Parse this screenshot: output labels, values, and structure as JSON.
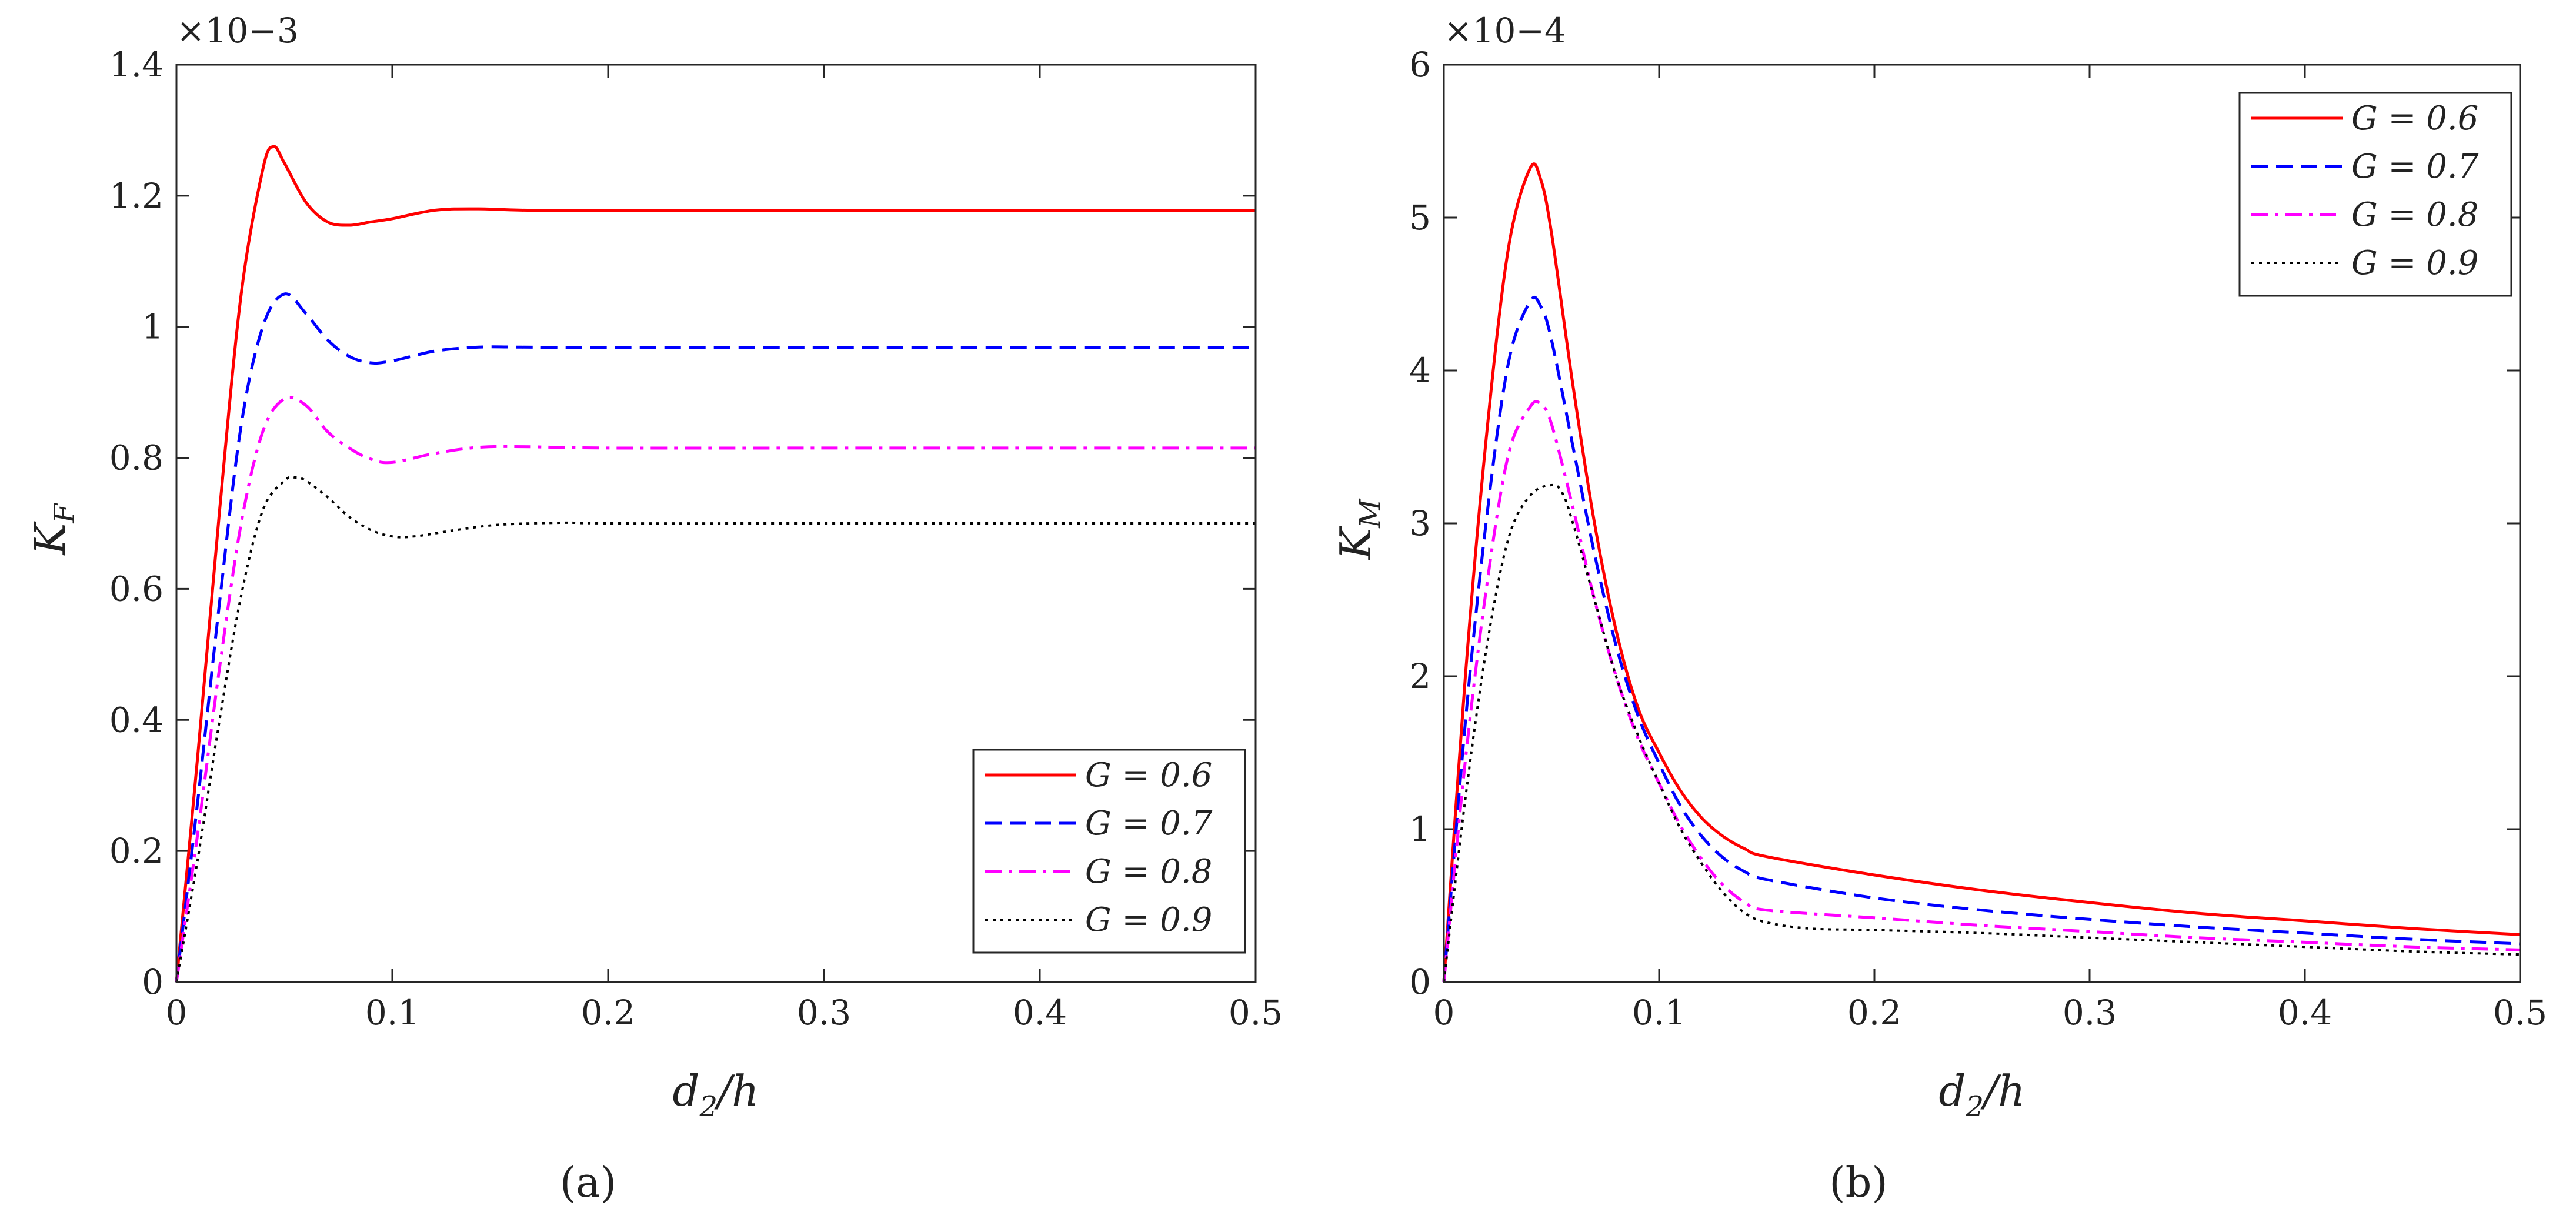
{
  "figure": {
    "captions": [
      "(a)",
      "(b)"
    ]
  },
  "legend_labels": [
    "G = 0.6",
    "G = 0.7",
    "G = 0.8",
    "G = 0.9"
  ],
  "chart_data": [
    {
      "type": "line",
      "panel": "a",
      "caption": "(a)",
      "xlabel": "d2/h",
      "ylabel": "KF",
      "y_exponent": "×10−3",
      "xlim": [
        0,
        0.5
      ],
      "ylim": [
        0,
        1.4
      ],
      "xticks": [
        0,
        0.1,
        0.2,
        0.3,
        0.4,
        0.5
      ],
      "xtick_labels": [
        "0",
        "0.1",
        "0.2",
        "0.3",
        "0.4",
        "0.5"
      ],
      "yticks": [
        0,
        0.2,
        0.4,
        0.6,
        0.8,
        1.0,
        1.2,
        1.4
      ],
      "ytick_labels": [
        "0",
        "0.2",
        "0.4",
        "0.6",
        "0.8",
        "1",
        "1.2",
        "1.4"
      ],
      "legend_position": "lower-right",
      "series": [
        {
          "name": "G = 0.6",
          "color": "#ff0000",
          "dash": "solid",
          "x": [
            0,
            0.01,
            0.02,
            0.03,
            0.04,
            0.045,
            0.05,
            0.06,
            0.07,
            0.08,
            0.09,
            0.1,
            0.12,
            0.14,
            0.16,
            0.2,
            0.3,
            0.4,
            0.5
          ],
          "y": [
            0,
            0.35,
            0.72,
            1.05,
            1.24,
            1.275,
            1.25,
            1.19,
            1.16,
            1.155,
            1.16,
            1.165,
            1.178,
            1.18,
            1.178,
            1.177,
            1.177,
            1.177,
            1.177
          ]
        },
        {
          "name": "G = 0.7",
          "color": "#0000ff",
          "dash": "dashed",
          "x": [
            0,
            0.01,
            0.02,
            0.03,
            0.04,
            0.05,
            0.06,
            0.07,
            0.08,
            0.09,
            0.1,
            0.12,
            0.14,
            0.16,
            0.2,
            0.3,
            0.4,
            0.5
          ],
          "y": [
            0,
            0.28,
            0.58,
            0.85,
            1.0,
            1.05,
            1.02,
            0.98,
            0.955,
            0.945,
            0.948,
            0.963,
            0.969,
            0.969,
            0.968,
            0.968,
            0.968,
            0.968
          ]
        },
        {
          "name": "G = 0.8",
          "color": "#ff00ff",
          "dash": "dashdot",
          "x": [
            0,
            0.01,
            0.02,
            0.03,
            0.04,
            0.05,
            0.06,
            0.07,
            0.08,
            0.09,
            0.1,
            0.12,
            0.14,
            0.16,
            0.2,
            0.3,
            0.4,
            0.5
          ],
          "y": [
            0,
            0.23,
            0.48,
            0.7,
            0.84,
            0.89,
            0.88,
            0.84,
            0.815,
            0.798,
            0.793,
            0.807,
            0.816,
            0.817,
            0.815,
            0.815,
            0.815,
            0.815
          ]
        },
        {
          "name": "G = 0.9",
          "color": "#000000",
          "dash": "dotted",
          "x": [
            0,
            0.01,
            0.02,
            0.03,
            0.04,
            0.05,
            0.055,
            0.06,
            0.07,
            0.08,
            0.09,
            0.1,
            0.11,
            0.13,
            0.15,
            0.18,
            0.2,
            0.3,
            0.4,
            0.5
          ],
          "y": [
            0,
            0.19,
            0.4,
            0.59,
            0.72,
            0.765,
            0.77,
            0.765,
            0.74,
            0.71,
            0.69,
            0.68,
            0.68,
            0.69,
            0.698,
            0.701,
            0.7,
            0.7,
            0.7,
            0.7
          ]
        }
      ]
    },
    {
      "type": "line",
      "panel": "b",
      "caption": "(b)",
      "xlabel": "d2/h",
      "ylabel": "KM",
      "y_exponent": "×10−4",
      "xlim": [
        0,
        0.5
      ],
      "ylim": [
        0,
        6
      ],
      "xticks": [
        0,
        0.1,
        0.2,
        0.3,
        0.4,
        0.5
      ],
      "xtick_labels": [
        "0",
        "0.1",
        "0.2",
        "0.3",
        "0.4",
        "0.5"
      ],
      "yticks": [
        0,
        1,
        2,
        3,
        4,
        5,
        6
      ],
      "ytick_labels": [
        "0",
        "1",
        "2",
        "3",
        "4",
        "5",
        "6"
      ],
      "legend_position": "top-right",
      "series": [
        {
          "name": "G = 0.6",
          "color": "#ff0000",
          "dash": "solid",
          "x": [
            0,
            0.01,
            0.02,
            0.03,
            0.04,
            0.045,
            0.05,
            0.06,
            0.07,
            0.08,
            0.09,
            0.1,
            0.11,
            0.12,
            0.13,
            0.14,
            0.15,
            0.2,
            0.25,
            0.3,
            0.35,
            0.4,
            0.45,
            0.5
          ],
          "y": [
            0,
            2.0,
            3.6,
            4.8,
            5.32,
            5.25,
            4.9,
            3.9,
            3.0,
            2.3,
            1.8,
            1.5,
            1.25,
            1.07,
            0.95,
            0.87,
            0.82,
            0.7,
            0.6,
            0.52,
            0.45,
            0.4,
            0.35,
            0.31
          ]
        },
        {
          "name": "G = 0.7",
          "color": "#0000ff",
          "dash": "dashed",
          "x": [
            0,
            0.01,
            0.02,
            0.03,
            0.04,
            0.045,
            0.05,
            0.06,
            0.07,
            0.08,
            0.09,
            0.1,
            0.11,
            0.12,
            0.13,
            0.14,
            0.15,
            0.2,
            0.25,
            0.3,
            0.35,
            0.4,
            0.45,
            0.5
          ],
          "y": [
            0,
            1.7,
            3.05,
            4.05,
            4.45,
            4.42,
            4.2,
            3.5,
            2.8,
            2.2,
            1.75,
            1.43,
            1.15,
            0.95,
            0.81,
            0.72,
            0.67,
            0.55,
            0.47,
            0.41,
            0.36,
            0.32,
            0.28,
            0.25
          ]
        },
        {
          "name": "G = 0.8",
          "color": "#ff00ff",
          "dash": "dashdot",
          "x": [
            0,
            0.01,
            0.02,
            0.03,
            0.04,
            0.045,
            0.05,
            0.06,
            0.07,
            0.08,
            0.09,
            0.1,
            0.11,
            0.12,
            0.13,
            0.14,
            0.15,
            0.2,
            0.25,
            0.3,
            0.35,
            0.4,
            0.45,
            0.5
          ],
          "y": [
            0,
            1.45,
            2.6,
            3.45,
            3.76,
            3.78,
            3.65,
            3.1,
            2.5,
            2.0,
            1.6,
            1.3,
            1.02,
            0.8,
            0.63,
            0.52,
            0.47,
            0.42,
            0.37,
            0.33,
            0.29,
            0.26,
            0.23,
            0.21
          ]
        },
        {
          "name": "G = 0.9",
          "color": "#000000",
          "dash": "dotted",
          "x": [
            0,
            0.01,
            0.02,
            0.03,
            0.04,
            0.05,
            0.055,
            0.06,
            0.07,
            0.08,
            0.09,
            0.1,
            0.11,
            0.12,
            0.13,
            0.14,
            0.15,
            0.17,
            0.2,
            0.25,
            0.3,
            0.35,
            0.4,
            0.45,
            0.5
          ],
          "y": [
            0,
            1.2,
            2.2,
            2.9,
            3.18,
            3.25,
            3.2,
            3.0,
            2.5,
            2.0,
            1.62,
            1.3,
            1.0,
            0.77,
            0.58,
            0.45,
            0.39,
            0.35,
            0.34,
            0.32,
            0.29,
            0.26,
            0.23,
            0.2,
            0.18
          ]
        }
      ]
    }
  ]
}
